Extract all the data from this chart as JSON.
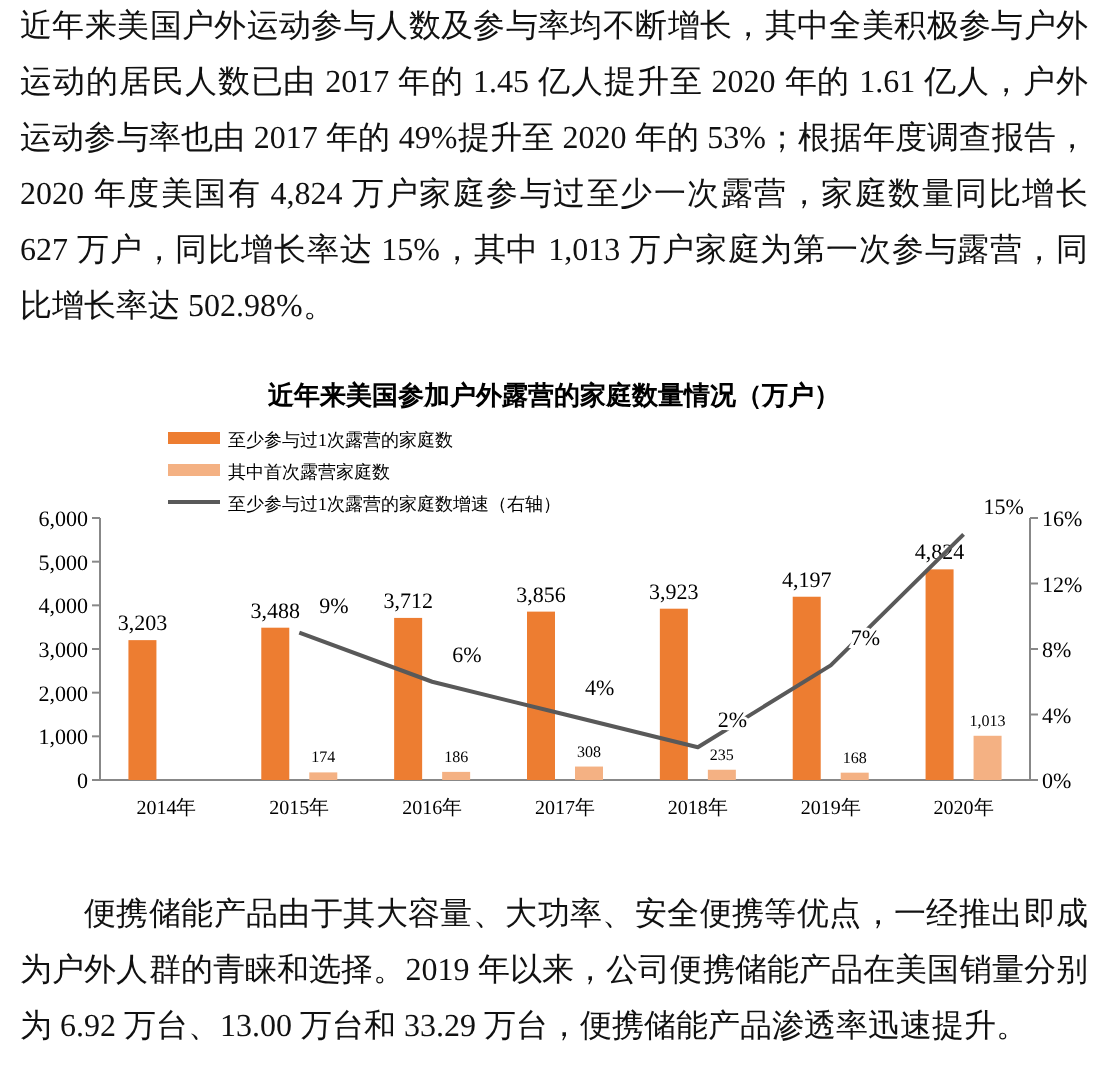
{
  "chart_data": {
    "type": "bar",
    "title": "近年来美国参加户外露营的家庭数量情况（万户）",
    "annotations": [
      "近年来美国户外运动参与人数及参与率均不断增长，其中全美积极参与户外运动的居民人数已由 2017 年的 1.45 亿人提升至 2020 年的 1.61 亿人，户外运动参与率也由 2017 年的 49%提升至 2020 年的 53%；根据年度调查报告，2020 年度美国有 4,824 万户家庭参与过至少一次露营，家庭数量同比增长 627 万户，同比增长率达 15%，其中 1,013 万户家庭为第一次参与露营，同比增长率达 502.98%。",
      "便携储能产品由于其大容量、大功率、安全便携等优点，一经推出即成为户外人群的青睐和选择。2019 年以来，公司便携储能产品在美国销量分别为 6.92 万台、13.00 万台和 33.29 万台，便携储能产品渗透率迅速提升。"
    ],
    "categories": [
      "2014年",
      "2015年",
      "2016年",
      "2017年",
      "2018年",
      "2019年",
      "2020年"
    ],
    "series": [
      {
        "name": "至少参与过1次露营的家庭数",
        "color": "#ed7d31",
        "values": [
          3203,
          3488,
          3712,
          3856,
          3923,
          4197,
          4824
        ],
        "value_labels": [
          "3,203",
          "3,488",
          "3,712",
          "3,856",
          "3,923",
          "4,197",
          "4,824"
        ]
      },
      {
        "name": "其中首次露营家庭数",
        "color": "#f4b183",
        "values": [
          null,
          174,
          186,
          308,
          235,
          168,
          1013
        ],
        "value_labels": [
          null,
          "174",
          "186",
          "308",
          "235",
          "168",
          "1,013"
        ]
      },
      {
        "name": "至少参与过1次露营的家庭数增速（右轴）",
        "color": "#595959",
        "type": "line",
        "axis": "y2",
        "values": [
          null,
          9,
          6,
          4,
          2,
          7,
          15
        ],
        "value_labels": [
          null,
          "9%",
          "6%",
          "4%",
          "2%",
          "7%",
          "15%"
        ]
      }
    ],
    "ylim": [
      0,
      6000
    ],
    "yticks": [
      0,
      {
        "value": 1000,
        "label": "1,000"
      },
      {
        "value": 2000,
        "label": "2,000"
      },
      {
        "value": 3000,
        "label": "3,000"
      },
      {
        "value": 4000,
        "label": "4,000"
      },
      {
        "value": 5000,
        "label": "5,000"
      },
      {
        "value": 6000,
        "label": "6,000"
      }
    ],
    "y2lim": [
      0,
      16
    ],
    "y2ticks": [
      {
        "value": 0,
        "label": "0%"
      },
      {
        "value": 4,
        "label": "4%"
      },
      {
        "value": 8,
        "label": "8%"
      },
      {
        "value": 12,
        "label": "12%"
      },
      {
        "value": 16,
        "label": "16%"
      }
    ],
    "legend": "top left",
    "grid": false,
    "marker": "none"
  }
}
